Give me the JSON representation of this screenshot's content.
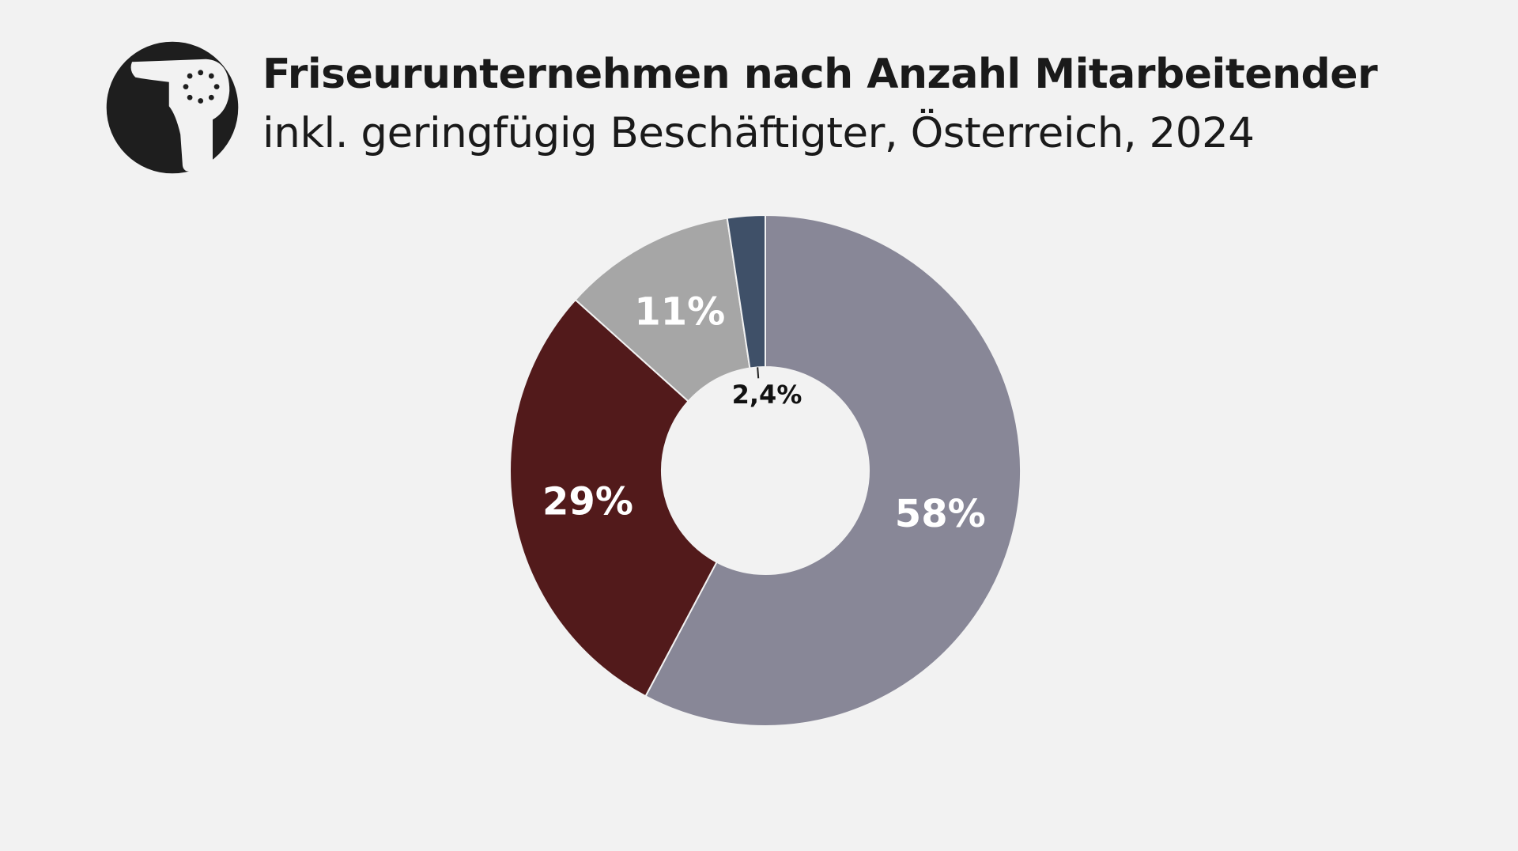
{
  "header": {
    "icon": "hair-dryer-icon",
    "title": "Friseurunternehmen nach Anzahl Mitarbeitender",
    "subtitle": "inkl. geringfügig Beschäftigter, Österreich, 2024"
  },
  "chart_data": {
    "type": "pie",
    "variant": "donut",
    "title": "Friseurunternehmen nach Anzahl Mitarbeitender",
    "subtitle": "inkl. geringfügig Beschäftigter, Österreich, 2024",
    "start": "top, clockwise",
    "legend": "none",
    "slices": [
      {
        "value": 58,
        "label": "58%",
        "color": "#888797",
        "label_color": "#ffffff"
      },
      {
        "value": 29,
        "label": "29%",
        "color": "#521a1b",
        "label_color": "#ffffff"
      },
      {
        "value": 11,
        "label": "11%",
        "color": "#a6a6a6",
        "label_color": "#ffffff"
      },
      {
        "value": 2.4,
        "label": "2,4%",
        "color": "#3f5068",
        "label_color": "#111111"
      }
    ]
  }
}
